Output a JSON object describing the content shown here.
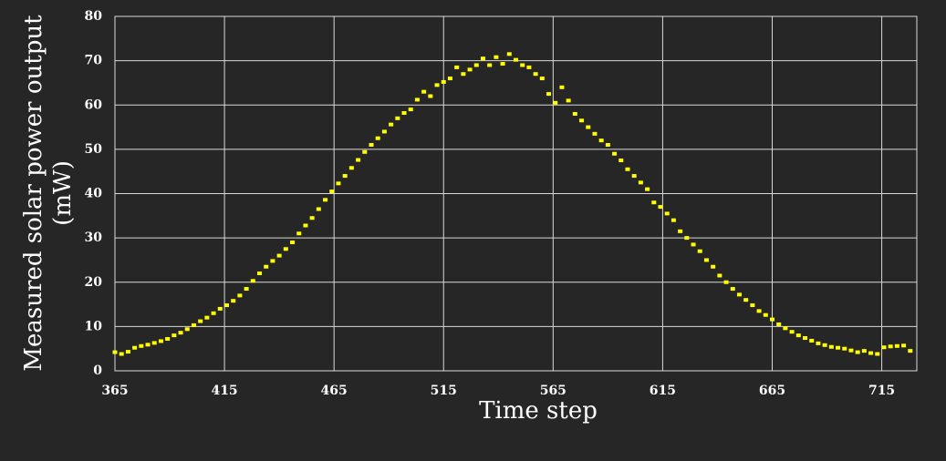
{
  "chart_data": {
    "type": "scatter",
    "x_label": "Time step",
    "y_label": [
      "Measured solar power output",
      "(mW)"
    ],
    "color": "#ffff00",
    "grid": true,
    "xlim": [
      365,
      731
    ],
    "ylim": [
      0,
      80
    ],
    "xticks": [
      365,
      415,
      465,
      515,
      565,
      615,
      665,
      715
    ],
    "yticks": [
      0,
      10,
      20,
      30,
      40,
      50,
      60,
      70,
      80
    ],
    "x": [
      365,
      368,
      371,
      374,
      377,
      380,
      383,
      386,
      389,
      392,
      395,
      398,
      401,
      404,
      407,
      410,
      413,
      416,
      419,
      422,
      425,
      428,
      431,
      434,
      437,
      440,
      443,
      446,
      449,
      452,
      455,
      458,
      461,
      464,
      467,
      470,
      473,
      476,
      479,
      482,
      485,
      488,
      491,
      494,
      497,
      500,
      503,
      506,
      509,
      512,
      515,
      518,
      521,
      524,
      527,
      530,
      533,
      536,
      539,
      542,
      545,
      548,
      551,
      554,
      557,
      560,
      563,
      566,
      569,
      572,
      575,
      578,
      581,
      584,
      587,
      590,
      593,
      596,
      599,
      602,
      605,
      608,
      611,
      614,
      617,
      620,
      623,
      626,
      629,
      632,
      635,
      638,
      641,
      644,
      647,
      650,
      653,
      656,
      659,
      662,
      665,
      668,
      671,
      674,
      677,
      680,
      683,
      686,
      689,
      692,
      695,
      698,
      701,
      704,
      707,
      710,
      713,
      716,
      719,
      722,
      725,
      728
    ],
    "values": [
      4.2,
      3.8,
      4.3,
      5.2,
      5.6,
      5.9,
      6.3,
      6.7,
      7.2,
      8.0,
      8.6,
      9.4,
      10.3,
      11.2,
      12.0,
      13.0,
      14.0,
      14.8,
      15.8,
      17.0,
      18.5,
      20.3,
      22.0,
      23.5,
      24.8,
      26.0,
      27.5,
      29.0,
      31.0,
      32.8,
      34.5,
      36.5,
      38.6,
      40.5,
      42.3,
      44.0,
      45.8,
      47.6,
      49.4,
      51.0,
      52.5,
      54.0,
      55.6,
      57.0,
      58.2,
      59.0,
      61.2,
      63.0,
      62.0,
      64.5,
      65.2,
      66.0,
      68.5,
      67.0,
      68.0,
      69.0,
      70.5,
      69.0,
      70.8,
      69.3,
      71.5,
      70.2,
      69.0,
      68.5,
      67.0,
      66.0,
      62.5,
      60.5,
      64.0,
      61.0,
      58.0,
      56.5,
      55.0,
      53.5,
      52.0,
      51.0,
      49.0,
      47.5,
      45.5,
      44.0,
      42.5,
      41.0,
      38.0,
      37.0,
      35.5,
      34.0,
      31.5,
      30.0,
      28.5,
      27.0,
      25.0,
      23.5,
      21.5,
      20.0,
      18.5,
      17.2,
      16.0,
      14.8,
      13.5,
      12.6,
      11.6,
      10.5,
      9.6,
      8.8,
      8.0,
      7.4,
      6.8,
      6.2,
      5.8,
      5.4,
      5.2,
      5.0,
      4.6,
      4.2,
      4.5,
      4.0,
      3.8,
      5.3,
      5.5,
      5.6,
      5.7,
      4.5
    ]
  }
}
